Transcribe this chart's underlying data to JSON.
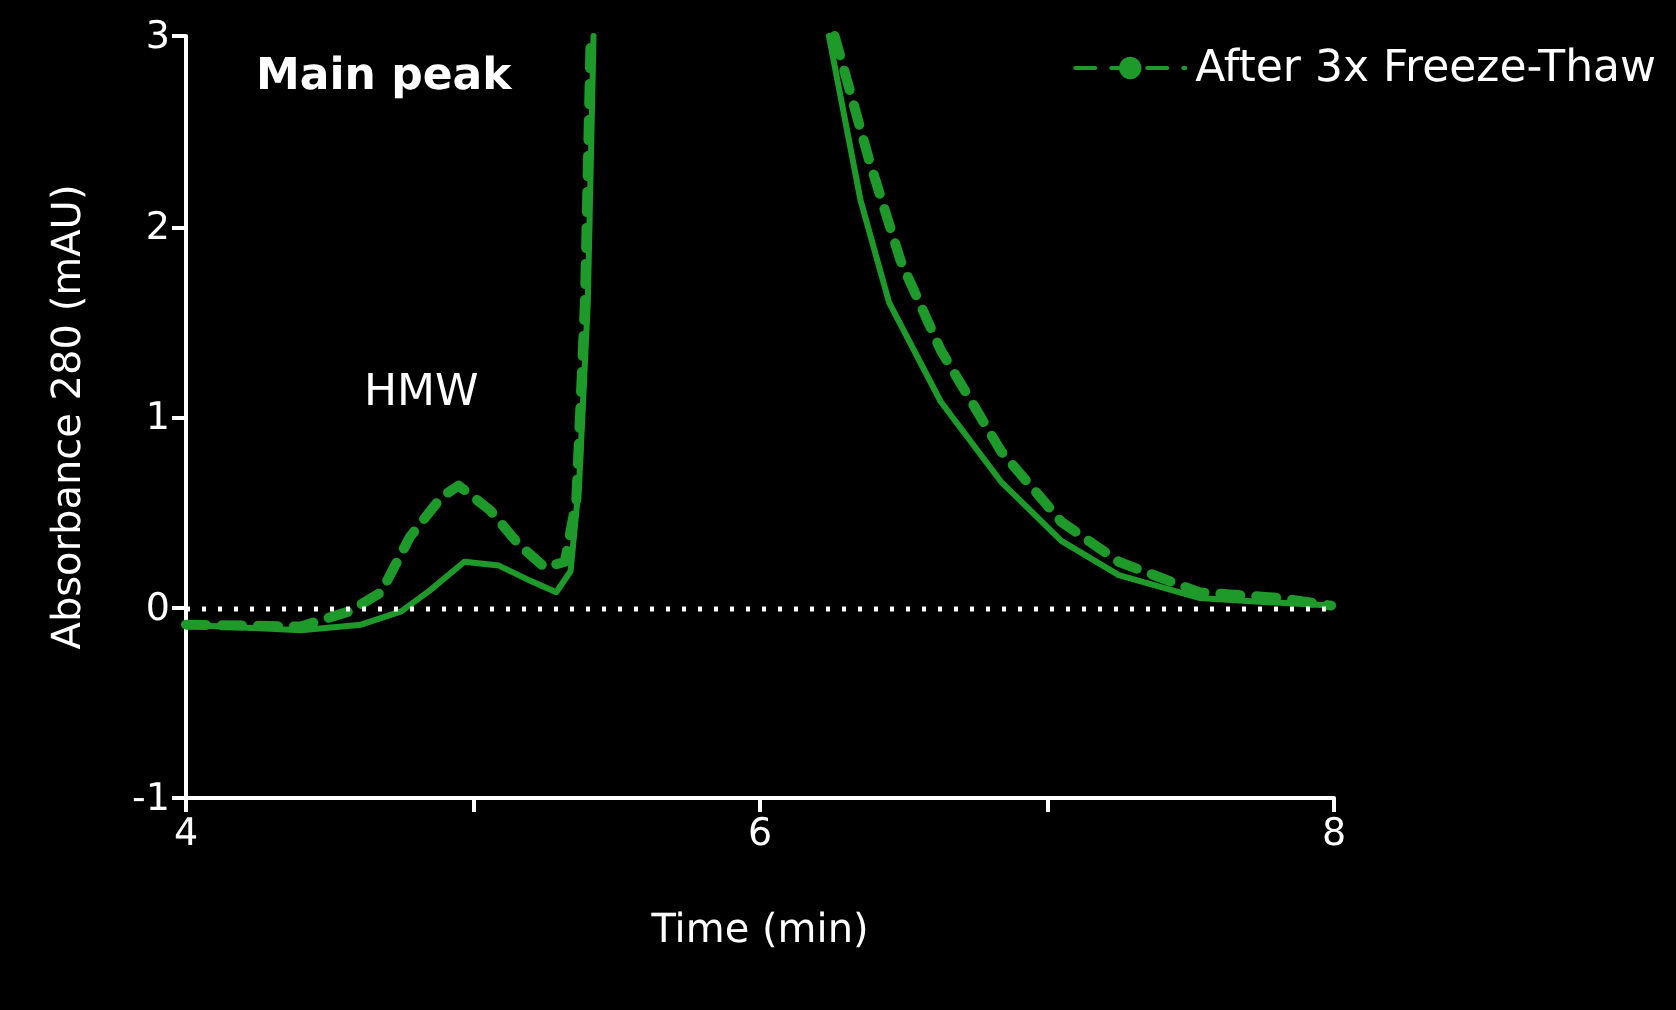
{
  "chart_data": {
    "type": "line",
    "xlabel": "Time (min)",
    "ylabel": "Absorbance 280 (mAU)",
    "annotations": [
      "Main peak",
      "HMW"
    ],
    "xlim": [
      4,
      8
    ],
    "xticks": [
      4,
      {
        "value": 5,
        "label": null
      },
      6,
      {
        "value": 7,
        "label": null
      },
      8
    ],
    "ylim": [
      -1,
      3
    ],
    "yticks": [
      -1,
      0,
      1,
      2,
      3
    ],
    "grid": false,
    "legend": "top right",
    "marker": "none",
    "ref_lines": [
      {
        "axis": "y",
        "value": 0,
        "color": "#ffffff",
        "line_style": "dotted"
      }
    ],
    "series": [
      {
        "color": "#1e9a2a",
        "line_style": "solid",
        "x": [
          4.0,
          4.4,
          4.61,
          4.75,
          4.85,
          4.97,
          5.09,
          5.2,
          5.29,
          5.34,
          5.37,
          5.4,
          5.42,
          5.8,
          6.24,
          6.35,
          6.45,
          6.63,
          6.84,
          7.05,
          7.25,
          7.53,
          7.74,
          7.99
        ],
        "values": [
          -0.09,
          -0.12,
          -0.09,
          -0.02,
          0.09,
          0.24,
          0.22,
          0.14,
          0.08,
          0.19,
          0.66,
          1.6,
          3,
          null,
          3,
          2.14,
          1.6,
          1.08,
          0.66,
          0.35,
          0.17,
          0.05,
          0.03,
          0.01
        ]
      },
      {
        "name": "After 3x Freeze-Thaw",
        "color": "#1e9a2a",
        "line_style": "dashed",
        "x": [
          4.0,
          4.4,
          4.57,
          4.68,
          4.78,
          4.89,
          4.95,
          5.06,
          5.16,
          5.25,
          5.32,
          5.36,
          5.39,
          5.41,
          5.8,
          6.26,
          6.38,
          6.49,
          6.63,
          6.84,
          7.05,
          7.25,
          7.53,
          7.81,
          7.99
        ],
        "values": [
          -0.09,
          -0.1,
          -0.02,
          0.08,
          0.37,
          0.58,
          0.64,
          0.51,
          0.33,
          0.21,
          0.24,
          0.56,
          1.6,
          3,
          null,
          3,
          2.35,
          1.82,
          1.35,
          0.82,
          0.45,
          0.24,
          0.08,
          0.05,
          0.01
        ]
      }
    ]
  }
}
